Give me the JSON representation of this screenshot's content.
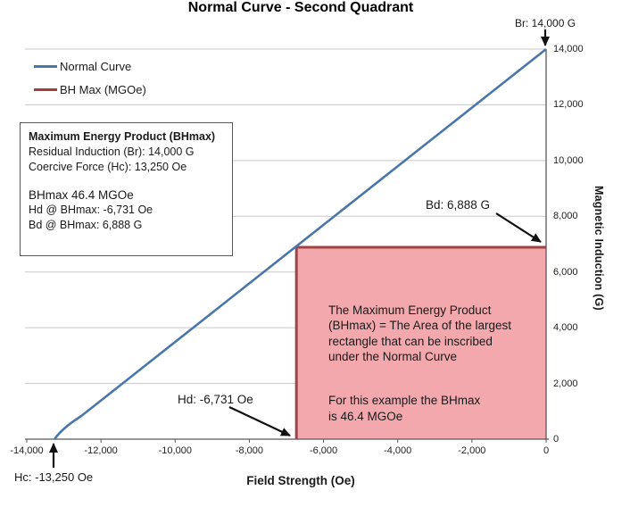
{
  "title": "Normal Curve - Second Quadrant",
  "legend": {
    "items": [
      {
        "label": "Normal Curve",
        "color": "#4a76ab"
      },
      {
        "label": "BH Max (MGOe)",
        "color": "#9e3e3e"
      }
    ]
  },
  "info_box": {
    "title": "Maximum Energy Product (BHmax)",
    "lines": [
      "Residual Induction (Br): 14,000 G",
      "Coercive Force (Hc): 13,250 Oe"
    ],
    "bhmax": "BHmax 46.4 MGOe",
    "lines2": [
      "Hd @ BHmax: -6,731 Oe",
      "Bd @ BHmax: 6,888 G"
    ]
  },
  "rect_note": {
    "para1": "The Maximum Energy Product\n(BHmax) = The Area of the largest\nrectangle that can be inscribed\nunder the Normal Curve",
    "para2": "For this example the BHmax\nis 46.4 MGOe"
  },
  "annotations": {
    "br": "Br: 14,000 G",
    "bd": "Bd: 6,888 G",
    "hd": "Hd: -6,731 Oe",
    "hc": "Hc: -13,250 Oe"
  },
  "chart_data": {
    "type": "line",
    "title": "Normal Curve - Second Quadrant",
    "xlabel": "Field Strength (Oe)",
    "ylabel": "Magnetic Induction (G)",
    "xlim": [
      -14000,
      0
    ],
    "ylim": [
      0,
      14000
    ],
    "grid": "horizontal",
    "legend_position": "top-left",
    "x_ticks": {
      "values": [
        -14000,
        -12000,
        -10000,
        -8000,
        -6000,
        -4000,
        -2000,
        0
      ],
      "labels": [
        "-14,000",
        "-12,000",
        "-10,000",
        "-8,000",
        "-6,000",
        "-4,000",
        "-2,000",
        "0"
      ]
    },
    "y_ticks": {
      "values": [
        14000,
        12000,
        10000,
        8000,
        6000,
        4000,
        2000,
        0
      ],
      "labels": [
        "14,000",
        "12,000",
        "10,000",
        "8,000",
        "6,000",
        "4,000",
        "2,000",
        "0"
      ]
    },
    "series": [
      {
        "name": "Normal Curve",
        "type": "line",
        "color": "#4a76ab",
        "points": [
          [
            -13250,
            0
          ],
          [
            0,
            14000
          ]
        ]
      },
      {
        "name": "BH Max (MGOe)",
        "type": "rect",
        "line_color": "#a04345",
        "fill_color": "#f2a8ac",
        "x_range": [
          -6731,
          0
        ],
        "y_range": [
          0,
          6888
        ]
      }
    ],
    "key_points": {
      "residual_induction_br_G": 14000,
      "coercive_force_hc_Oe": -13250,
      "hd_at_bhmax_Oe": -6731,
      "bd_at_bhmax_G": 6888,
      "bhmax_MGOe": 46.4
    },
    "colors": {
      "gridline": "#c8c8c8",
      "axis": "#595959",
      "arrow": "#111111"
    }
  }
}
